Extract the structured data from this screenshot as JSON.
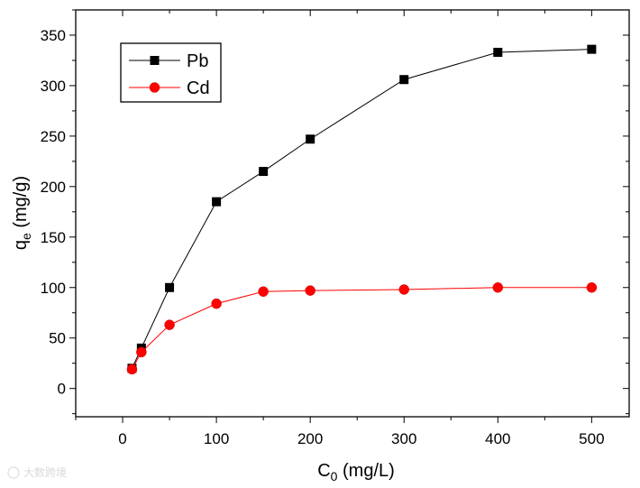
{
  "chart_data": {
    "type": "line",
    "title": "",
    "xlabel": {
      "main": "C",
      "sub": "0",
      "rest": " (mg/L)"
    },
    "ylabel": {
      "main": "q",
      "sub": "e",
      "rest": " (mg/g)"
    },
    "xlim": [
      -50,
      540
    ],
    "ylim": [
      -28,
      375
    ],
    "xticks": [
      0,
      100,
      200,
      300,
      400,
      500
    ],
    "yticks": [
      0,
      50,
      100,
      150,
      200,
      250,
      300,
      350
    ],
    "grid": false,
    "legend_position": "top-left",
    "series": [
      {
        "name": "Pb",
        "color": "#000000",
        "marker": "square",
        "x": [
          10,
          20,
          50,
          100,
          150,
          200,
          300,
          400,
          500
        ],
        "y": [
          20,
          40,
          100,
          185,
          215,
          247,
          306,
          333,
          336
        ]
      },
      {
        "name": "Cd",
        "color": "#ff0000",
        "marker": "circle",
        "x": [
          10,
          20,
          50,
          100,
          150,
          200,
          300,
          400,
          500
        ],
        "y": [
          19,
          36,
          63,
          84,
          96,
          97,
          98,
          100,
          100
        ]
      }
    ]
  },
  "watermark": "大数跨境"
}
